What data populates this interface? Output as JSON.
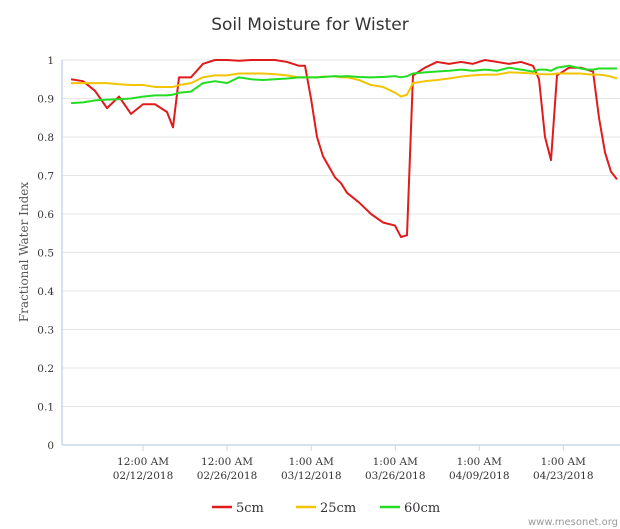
{
  "chart_data": {
    "type": "line",
    "title": "Soil Moisture for Wister",
    "y_label": "Fractional Water Index",
    "credit": "www.mesonet.org",
    "x": [
      "2018-01-31",
      "2018-02-02",
      "2018-02-04",
      "2018-02-06",
      "2018-02-08",
      "2018-02-10",
      "2018-02-12",
      "2018-02-14",
      "2018-02-16",
      "2018-02-17",
      "2018-02-18",
      "2018-02-20",
      "2018-02-22",
      "2018-02-24",
      "2018-02-26",
      "2018-02-28",
      "2018-03-02",
      "2018-03-04",
      "2018-03-06",
      "2018-03-08",
      "2018-03-10",
      "2018-03-11",
      "2018-03-12",
      "2018-03-13",
      "2018-03-14",
      "2018-03-16",
      "2018-03-17",
      "2018-03-18",
      "2018-03-20",
      "2018-03-22",
      "2018-03-24",
      "2018-03-26",
      "2018-03-27",
      "2018-03-28",
      "2018-03-29",
      "2018-03-31",
      "2018-04-02",
      "2018-04-04",
      "2018-04-06",
      "2018-04-08",
      "2018-04-10",
      "2018-04-12",
      "2018-04-14",
      "2018-04-16",
      "2018-04-18",
      "2018-04-19",
      "2018-04-20",
      "2018-04-21",
      "2018-04-22",
      "2018-04-24",
      "2018-04-26",
      "2018-04-27",
      "2018-04-28",
      "2018-04-29",
      "2018-04-30",
      "2018-05-01",
      "2018-05-02"
    ],
    "series": [
      {
        "name": "5cm",
        "color": "#e01b1b",
        "values": [
          0.95,
          0.945,
          0.92,
          0.875,
          0.905,
          0.86,
          0.885,
          0.885,
          0.865,
          0.825,
          0.955,
          0.955,
          0.99,
          1.0,
          1.0,
          0.998,
          1.0,
          1.0,
          1.0,
          0.995,
          0.985,
          0.985,
          0.9,
          0.8,
          0.75,
          0.695,
          0.68,
          0.655,
          0.63,
          0.6,
          0.578,
          0.57,
          0.54,
          0.545,
          0.96,
          0.98,
          0.995,
          0.99,
          0.995,
          0.99,
          1.0,
          0.995,
          0.99,
          0.995,
          0.985,
          0.95,
          0.8,
          0.74,
          0.96,
          0.98,
          0.98,
          0.975,
          0.97,
          0.85,
          0.76,
          0.71,
          0.69
        ]
      },
      {
        "name": "25cm",
        "color": "#f2c500",
        "values": [
          0.94,
          0.94,
          0.94,
          0.94,
          0.937,
          0.935,
          0.935,
          0.93,
          0.93,
          0.93,
          0.935,
          0.94,
          0.955,
          0.96,
          0.96,
          0.965,
          0.965,
          0.965,
          0.963,
          0.96,
          0.955,
          0.955,
          0.955,
          0.955,
          0.957,
          0.957,
          0.955,
          0.955,
          0.948,
          0.935,
          0.93,
          0.915,
          0.905,
          0.91,
          0.94,
          0.945,
          0.948,
          0.952,
          0.957,
          0.96,
          0.962,
          0.962,
          0.968,
          0.967,
          0.965,
          0.963,
          0.963,
          0.963,
          0.965,
          0.965,
          0.965,
          0.963,
          0.962,
          0.962,
          0.96,
          0.957,
          0.952
        ]
      },
      {
        "name": "60cm",
        "color": "#22dd22",
        "values": [
          0.888,
          0.89,
          0.895,
          0.897,
          0.898,
          0.9,
          0.905,
          0.908,
          0.908,
          0.91,
          0.915,
          0.918,
          0.94,
          0.945,
          0.94,
          0.955,
          0.95,
          0.948,
          0.95,
          0.952,
          0.955,
          0.955,
          0.955,
          0.955,
          0.956,
          0.958,
          0.957,
          0.958,
          0.956,
          0.955,
          0.956,
          0.958,
          0.955,
          0.958,
          0.965,
          0.968,
          0.97,
          0.972,
          0.975,
          0.972,
          0.975,
          0.972,
          0.98,
          0.975,
          0.97,
          0.975,
          0.975,
          0.972,
          0.98,
          0.985,
          0.978,
          0.975,
          0.975,
          0.978,
          0.978,
          0.978,
          0.978
        ]
      }
    ],
    "xlim": [
      "2018-01-29T12:00",
      "2018-05-02T12:00"
    ],
    "xticks": [
      {
        "value": "2018-02-12T00:00",
        "label": [
          "12:00 AM",
          "02/12/2018"
        ]
      },
      {
        "value": "2018-02-26T00:00",
        "label": [
          "12:00 AM",
          "02/26/2018"
        ]
      },
      {
        "value": "2018-03-12T01:00",
        "label": [
          "1:00 AM",
          "03/12/2018"
        ]
      },
      {
        "value": "2018-03-26T01:00",
        "label": [
          "1:00 AM",
          "03/26/2018"
        ]
      },
      {
        "value": "2018-04-09T01:00",
        "label": [
          "1:00 AM",
          "04/09/2018"
        ]
      },
      {
        "value": "2018-04-23T01:00",
        "label": [
          "1:00 AM",
          "04/23/2018"
        ]
      }
    ],
    "ylim": [
      0,
      1
    ],
    "yticks": [
      0,
      0.1,
      0.2,
      0.3,
      0.4,
      0.5,
      0.6,
      0.7,
      0.8,
      0.9,
      1
    ],
    "grid": true,
    "legend": "bottom"
  }
}
